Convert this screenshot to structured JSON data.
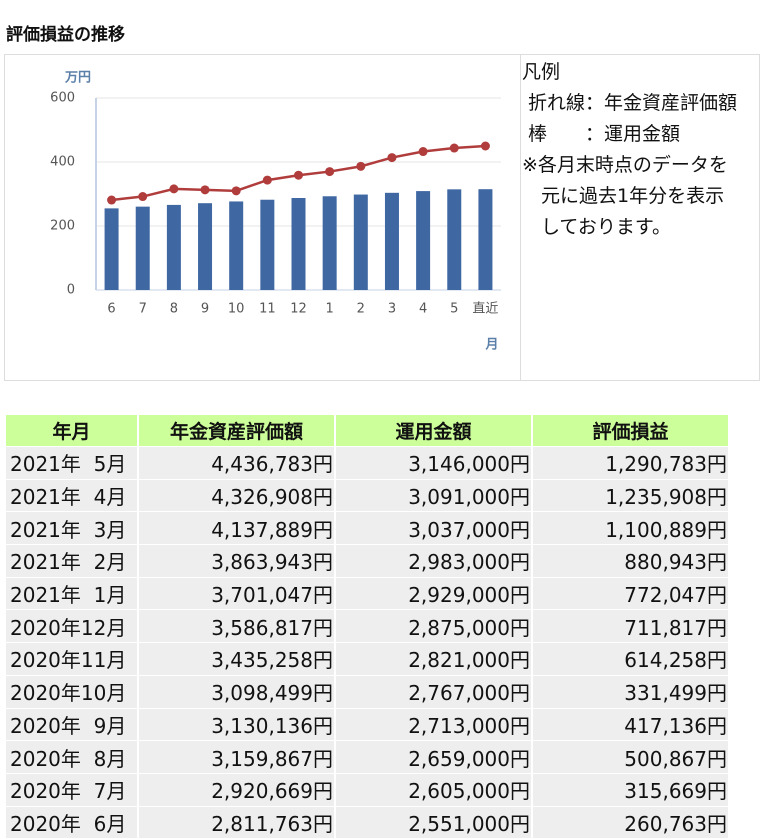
{
  "title": "評価損益の推移",
  "chart_data": {
    "type": "bar",
    "y_unit_label": "万円",
    "x_label": "月",
    "categories": [
      "6",
      "7",
      "8",
      "9",
      "10",
      "11",
      "12",
      "1",
      "2",
      "3",
      "4",
      "5",
      "直近"
    ],
    "series": [
      {
        "type": "bar",
        "color": "#3f68a3",
        "values": [
          255.1,
          260.5,
          265.9,
          271.3,
          276.7,
          282.1,
          287.5,
          292.9,
          298.3,
          303.7,
          309.1,
          314.6,
          315
        ]
      },
      {
        "type": "line",
        "color": "#b03c3c",
        "values": [
          281.2,
          292.1,
          316.0,
          313.0,
          309.8,
          343.5,
          358.7,
          370.1,
          386.4,
          413.8,
          432.7,
          443.7,
          450
        ]
      }
    ],
    "ylim": [
      0,
      600
    ],
    "yticks": [
      0,
      200,
      400,
      600
    ],
    "grid": true
  },
  "legend": {
    "title": "凡例",
    "lines": [
      " 折れ線：年金資産評価額",
      " 棒　　：運用金額",
      "※各月末時点のデータを",
      "　元に過去1年分を表示",
      "　しております。"
    ]
  },
  "table": {
    "header": [
      "年月",
      "年金資産評価額",
      "運用金額",
      "評価損益"
    ],
    "rows": [
      [
        "2021年  5月",
        "4,436,783円",
        "3,146,000円",
        "1,290,783円"
      ],
      [
        "2021年  4月",
        "4,326,908円",
        "3,091,000円",
        "1,235,908円"
      ],
      [
        "2021年  3月",
        "4,137,889円",
        "3,037,000円",
        "1,100,889円"
      ],
      [
        "2021年  2月",
        "3,863,943円",
        "2,983,000円",
        "880,943円"
      ],
      [
        "2021年  1月",
        "3,701,047円",
        "2,929,000円",
        "772,047円"
      ],
      [
        "2020年12月",
        "3,586,817円",
        "2,875,000円",
        "711,817円"
      ],
      [
        "2020年11月",
        "3,435,258円",
        "2,821,000円",
        "614,258円"
      ],
      [
        "2020年10月",
        "3,098,499円",
        "2,767,000円",
        "331,499円"
      ],
      [
        "2020年  9月",
        "3,130,136円",
        "2,713,000円",
        "417,136円"
      ],
      [
        "2020年  8月",
        "3,159,867円",
        "2,659,000円",
        "500,867円"
      ],
      [
        "2020年  7月",
        "2,920,669円",
        "2,605,000円",
        "315,669円"
      ],
      [
        "2020年  6月",
        "2,811,763円",
        "2,551,000円",
        "260,763円"
      ]
    ]
  }
}
